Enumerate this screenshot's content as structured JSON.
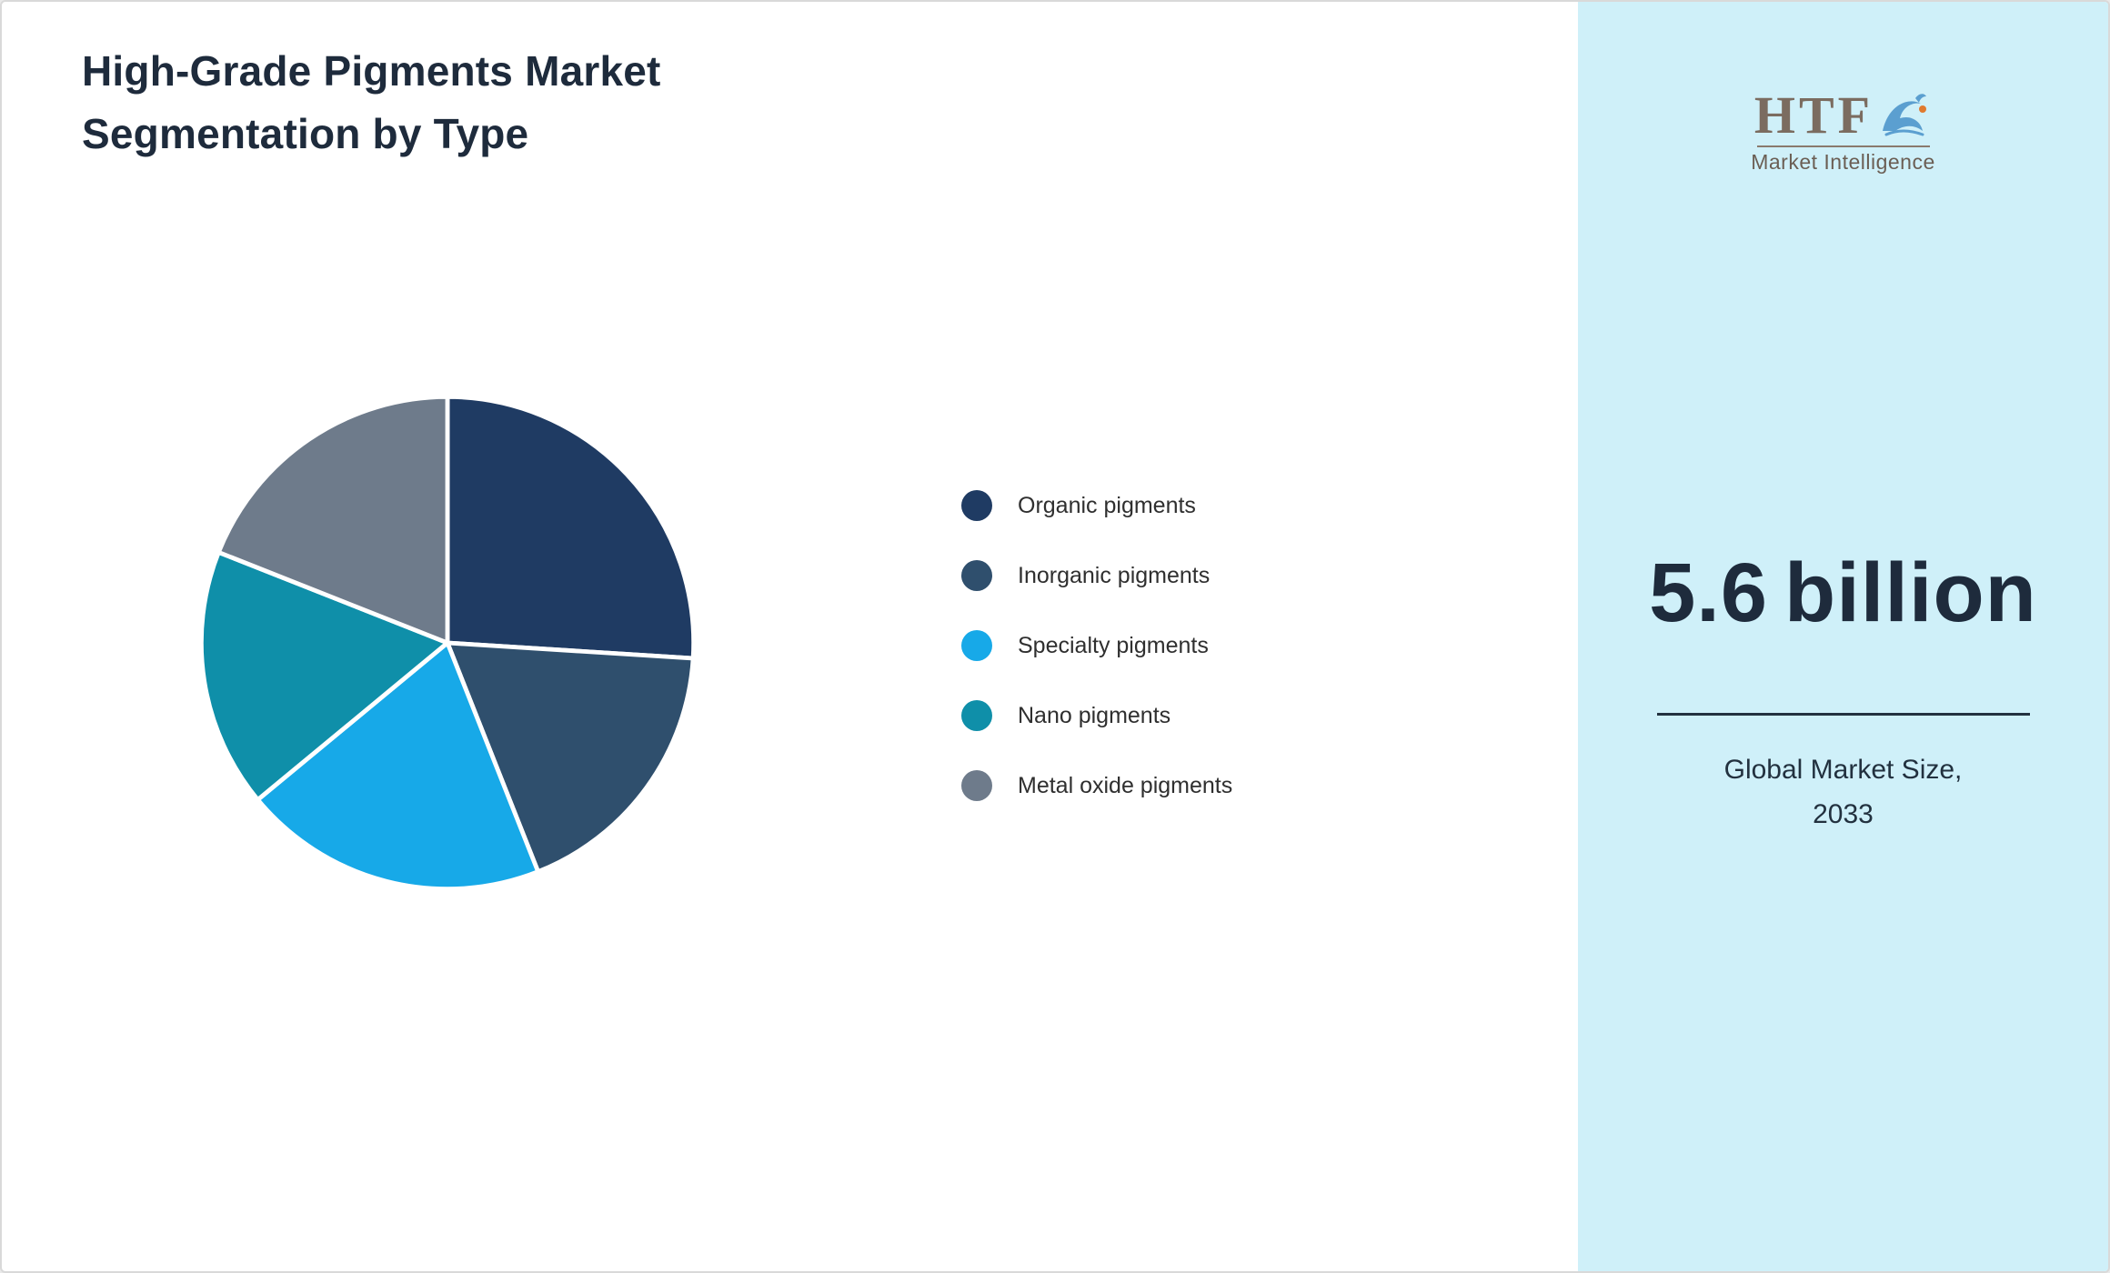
{
  "title": {
    "line1": "High-Grade Pigments Market",
    "line2": "Segmentation by Type"
  },
  "chart_data": {
    "type": "pie",
    "title": "High-Grade Pigments Market Segmentation by Type",
    "labels": [
      "Organic pigments",
      "Inorganic pigments",
      "Specialty pigments",
      "Nano pigments",
      "Metal oxide pigments"
    ],
    "values": [
      26,
      18,
      20,
      17,
      19
    ],
    "colors": [
      "#1f3b63",
      "#2f4f6d",
      "#17a9e8",
      "#0f8fa9",
      "#6e7b8b"
    ],
    "legend_position": "right",
    "start_angle_deg": 0,
    "slice_border_color": "#ffffff"
  },
  "sidebar": {
    "background": "#cff0f9",
    "logo": {
      "text": "HTF",
      "subtext": "Market Intelligence"
    },
    "stat_value": "5.6",
    "stat_unit": "billion",
    "caption_line1": "Global Market Size,",
    "caption_line2": "2033"
  }
}
